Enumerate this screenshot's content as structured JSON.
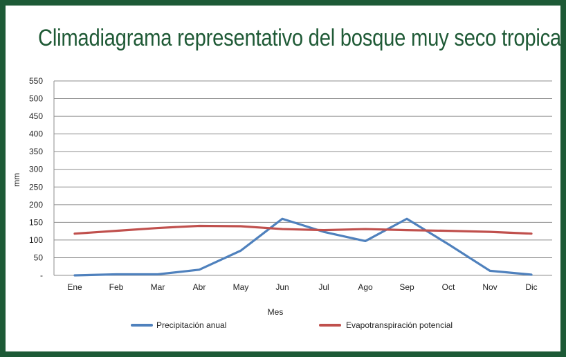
{
  "chart_data": {
    "type": "line",
    "title": "Climadiagrama representativo del bosque muy seco tropical",
    "xlabel": "Mes",
    "ylabel": "mm",
    "categories": [
      "Ene",
      "Feb",
      "Mar",
      "Abr",
      "May",
      "Jun",
      "Jul",
      "Ago",
      "Sep",
      "Oct",
      "Nov",
      "Dic"
    ],
    "yticks": [
      "-",
      "50",
      "100",
      "150",
      "200",
      "250",
      "300",
      "350",
      "400",
      "450",
      "500",
      "550"
    ],
    "ylim": [
      0,
      550
    ],
    "grid": true,
    "legend_position": "bottom",
    "series": [
      {
        "name": "Precipitación anual",
        "color": "#4f81bd",
        "values": [
          0,
          3,
          3,
          16,
          70,
          160,
          123,
          97,
          160,
          88,
          13,
          2
        ]
      },
      {
        "name": "Evapotranspiración potencial",
        "color": "#c0504d",
        "values": [
          118,
          126,
          134,
          140,
          139,
          131,
          128,
          131,
          128,
          126,
          123,
          118
        ]
      }
    ]
  }
}
